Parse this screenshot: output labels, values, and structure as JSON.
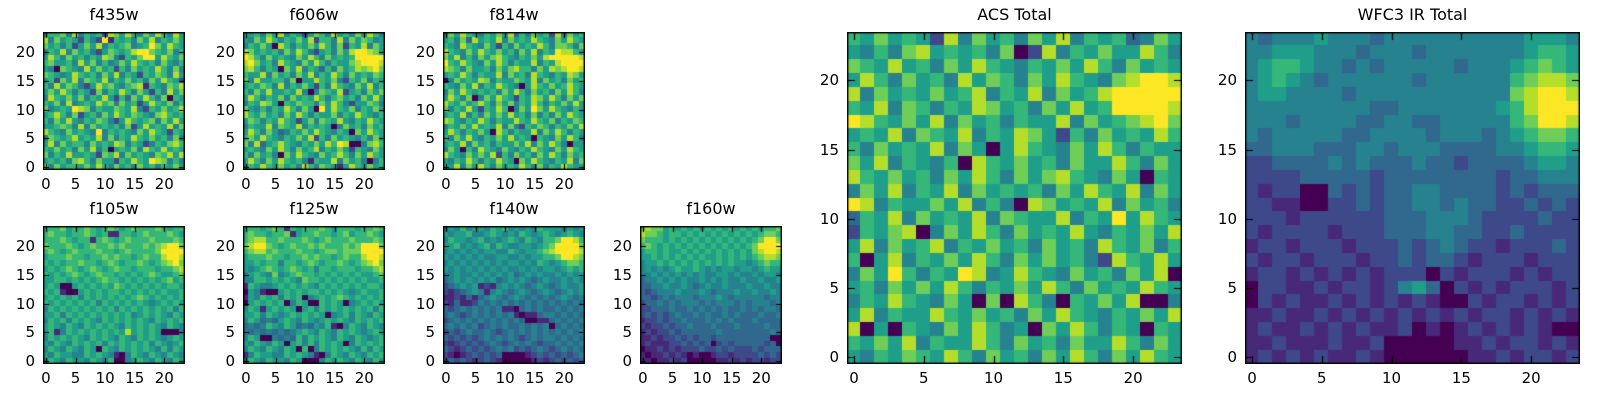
{
  "figure": {
    "background_color": "#ffffff",
    "text_color": "#000000",
    "frame_color": "#000000"
  },
  "chart_data": {
    "type": "heatmap",
    "colormap": "viridis",
    "colormap_stops": [
      "#440154",
      "#482878",
      "#3e4989",
      "#31688e",
      "#26828e",
      "#1f9e89",
      "#35b779",
      "#6ece58",
      "#b5de2b",
      "#fde725"
    ],
    "value_encoding": "each grid cell digit 0-9 maps to colormap_stops index (low=dark purple, high=bright yellow)",
    "grid_size": 24,
    "axis_range": [
      -0.5,
      23.5
    ],
    "xticks": [
      0,
      5,
      10,
      15,
      20
    ],
    "yticks": [
      0,
      5,
      10,
      15,
      20
    ],
    "panels": [
      {
        "id": "f435w",
        "title": "f435w",
        "grid": [
          "566748465628758647586485",
          "847565264291656475846575",
          "756462575846567456975865",
          "465847564257656899765746",
          "586475646587426579958657",
          "675564857464575865647546",
          "540765485756264756586474",
          "765458656475846526576485",
          "562758476584657564758652",
          "648576425867546781654768",
          "575864652746586475264857",
          "486575746585263758647065",
          "657484565867475625865746",
          "745659874655765842657568",
          "568647256475865765478656",
          "647585465764258656747585",
          "556764847565647258565847",
          "865475654946565475865265",
          "476568565847465865756474",
          "584756647565874652465786",
          "657564758460565748658565",
          "746585565276847565476858",
          "565647864755265865987464",
          "847566575864756475646575"
        ]
      },
      {
        "id": "f606w",
        "title": "f606w",
        "grid": [
          "656475846525764856475864",
          "547586465758266484757645",
          "465750864657586472658475",
          "875656475864256475899875",
          "986475654758647565699999",
          "897564865475864655789998",
          "786465075846536475687897",
          "655847564758465864756576",
          "748556647055865742657465",
          "565764846575264865475846",
          "647585565840476582564757",
          "586465747565864675647585",
          "465875065766475864255764",
          "754646586475095865746575",
          "865756475864655746586546",
          "576465865257476585465865",
          "465584765846565047564756",
          "586475346575865465075865",
          "675865465758264756546475",
          "748356865465758698004786",
          "565475864756846575265475",
          "647564075865475686475865",
          "586475865641655847564046",
          "465865756486476515865756"
        ]
      },
      {
        "id": "f814w",
        "title": "f814w",
        "grid": [
          "475865465758364756284756",
          "564738565847565865475865",
          "654865475264756586477647",
          "865475865756475846598865",
          "758464757865465758999998",
          "965865475864655846589999",
          "876475564757866475878998",
          "565864655847564865465875",
          "047565874655765847564756",
          "654758465865405865756865",
          "475865656475864756475864",
          "586470475865265875864757",
          "865756864757465864657585",
          "746585265860475975865465",
          "565846475758564746475865",
          "875465864655865865746576",
          "465758565847426576465758",
          "586465750864655847586465",
          "647585465758565065475864",
          "565847564655758475864055",
          "475064865475465865475865",
          "865475758264756475864756",
          "546586465865075865465847",
          "658475864756586474658655"
        ]
      },
      {
        "id": "f105w",
        "title": "f105w",
        "grid": [
          "666756676567656766676566",
          "676656676561166567666765",
          "666765661676567666766676",
          "766676567667676667678997",
          "676567666766567666679999",
          "566676656676766567668998",
          "656566766567656676567897",
          "565676567656766566656678",
          "656567656766565656765567",
          "556656565676656565656756",
          "565005656565765656565665",
          "656100565656656565656556",
          "565656465656565676565656",
          "656565656465656565456565",
          "465656565656465656565646",
          "556465656565656456565465",
          "465646565465656565465656",
          "565465465656546565654654",
          "561465656565658565650004",
          "465656546565465465654565",
          "546546565646565656465456",
          "465465465065465656546465",
          "546554465654104654654654",
          "465465546546004565465465"
        ]
      },
      {
        "id": "f125w",
        "title": "f125w",
        "grid": [
          "666567616566676566656676",
          "676656671566766567566765",
          "678866766676567666766676",
          "789976567667676667679997",
          "678867666766567767779999",
          "566676656676766567668998",
          "556566466567656676567897",
          "545676567656466566656678",
          "456547456766565656565567",
          "446656565476656565656556",
          "165445656565465656565665",
          "054100565656656565456556",
          "154656465604565676565656",
          "056565604650065650456565",
          "465156565056465656565646",
          "556465456565650456465465",
          "465343565465456565465656",
          "343465465343546104654654",
          "434343434565465465654565",
          "465004343646565465465456",
          "546546505646465650465656",
          "465465465060465656546465",
          "146554465654104654654656",
          "465465546500046565465465"
        ]
      },
      {
        "id": "f140w",
        "title": "f140w",
        "grid": [
          "454645546564545465554545",
          "545564456545465456545654",
          "465545645456546546679986",
          "556454564654455456799997",
          "454545455446545567899998",
          "545454544554454556679987",
          "454545454545545465456776",
          "545454545454454545545656",
          "445445454545345454454545",
          "345454545345454345445454",
          "234545121454543454345445",
          "212345414543454345434545",
          "112131345434543434345434",
          "213112434343434343434343",
          "323434343411034343343434",
          "343234343434101134434343",
          "234343434343430011343434",
          "343434234343343434034343",
          "232343343234343434343434",
          "323232343434323434434343",
          "212323234323434323343434",
          "321232323434232343234343",
          "210123232300001232323234",
          "232321232100000121232323"
        ]
      },
      {
        "id": "f160w",
        "title": "f160w",
        "grid": [
          "787756565656565656565667",
          "877656656565656565656776",
          "766656565656565656567997",
          "676565656565656565679999",
          "566565565656565656578998",
          "556565656565565656567887",
          "455656565656565655456766",
          "454545655654545545545655",
          "445454545454455454454554",
          "344545454454545445445445",
          "334454454345445444544544",
          "323444544454344454454454",
          "332343444344454344444344",
          "233434344434344434344434",
          "223334334343434334343443",
          "232323433434334343334334",
          "122323343334343433343333",
          "212232334333433343333433",
          "121223233333343333333343",
          "112122323233233333333300",
          "121112232323023233333230",
          "011212122232232322232333",
          "101121210100122122223232",
          "110112120000011212122122"
        ]
      },
      {
        "id": "acs_total",
        "title": "ACS Total",
        "grid": [
          "657565284756475846563475",
          "546478565647028465755864",
          "765856475865465758647565",
          "586475648576475865478998",
          "847565756846584756899999",
          "658476465875647585699998",
          "986575847564655847567897",
          "565847658465875264756586",
          "647565847505865475864655",
          "758465460865756475586475",
          "865756475864757865475065",
          "475846584756564758658475",
          "984655758464087565847564",
          "365847565847655846595865",
          "265780475864756585465758",
          "584756846575647564865746",
          "605846575864757564286585",
          "475964659845865475647580",
          "564757586465758647565865",
          "465865475070864065758004",
          "584655865756475865465758",
          "805065475864507586465065",
          "657584655864756475586475",
          "546576586475647586475865"
        ]
      },
      {
        "id": "wfc3_ir_total",
        "title": "WFC3 IR Total",
        "grid": [
          "434445444344444444445554",
          "445554443444344444445665",
          "456654434344444344456765",
          "456543444444344444467887",
          "455444434444444444478998",
          "444444444334444444568999",
          "444344443344334444467998",
          "434444433444434443456776",
          "334443334434443333445665",
          "223333434333433233334554",
          "222233333233333333233444",
          "212200323233443333232333",
          "221100223233443433223232",
          "222122222233344432222322",
          "212222122233344332232222",
          "122122212223234322122232",
          "212212221223233212221222",
          "122121212122202122212122",
          "022112122124530212122212",
          "021211212121210021221212",
          "112112121212121212212121",
          "121121212112010121212100",
          "112111211200000112122121",
          "121212112100000011212212"
        ]
      }
    ]
  }
}
